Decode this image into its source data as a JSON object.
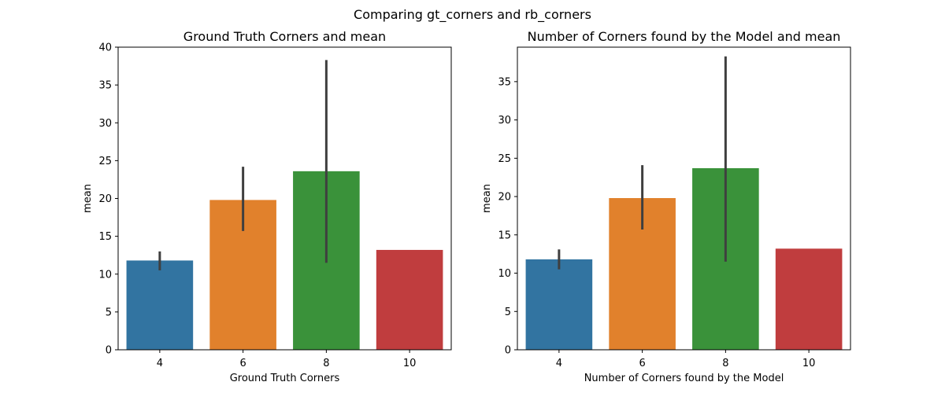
{
  "figure": {
    "suptitle": "Comparing gt_corners and rb_corners"
  },
  "chart_data": [
    {
      "type": "bar",
      "title": "Ground Truth Corners and mean",
      "xlabel": "Ground Truth Corners",
      "ylabel": "mean",
      "categories": [
        "4",
        "6",
        "8",
        "10"
      ],
      "values": [
        11.8,
        19.8,
        23.6,
        13.2
      ],
      "error_low": [
        10.5,
        15.7,
        11.5,
        null
      ],
      "error_high": [
        13.0,
        24.2,
        38.3,
        null
      ],
      "colors": [
        "#3274a1",
        "#e1812c",
        "#3a923a",
        "#c03d3e"
      ],
      "ylim": [
        0,
        40
      ],
      "yticks": [
        0,
        5,
        10,
        15,
        20,
        25,
        30,
        35,
        40
      ],
      "grid": false
    },
    {
      "type": "bar",
      "title": "Number of Corners found by the Model and mean",
      "xlabel": "Number of Corners found by the Model",
      "ylabel": "mean",
      "categories": [
        "4",
        "6",
        "8",
        "10"
      ],
      "values": [
        11.8,
        19.8,
        23.7,
        13.2
      ],
      "error_low": [
        10.5,
        15.7,
        11.5,
        null
      ],
      "error_high": [
        13.1,
        24.1,
        38.3,
        null
      ],
      "colors": [
        "#3274a1",
        "#e1812c",
        "#3a923a",
        "#c03d3e"
      ],
      "ylim": [
        0,
        39.5
      ],
      "yticks": [
        0,
        5,
        10,
        15,
        20,
        25,
        30,
        35
      ],
      "grid": false
    }
  ]
}
